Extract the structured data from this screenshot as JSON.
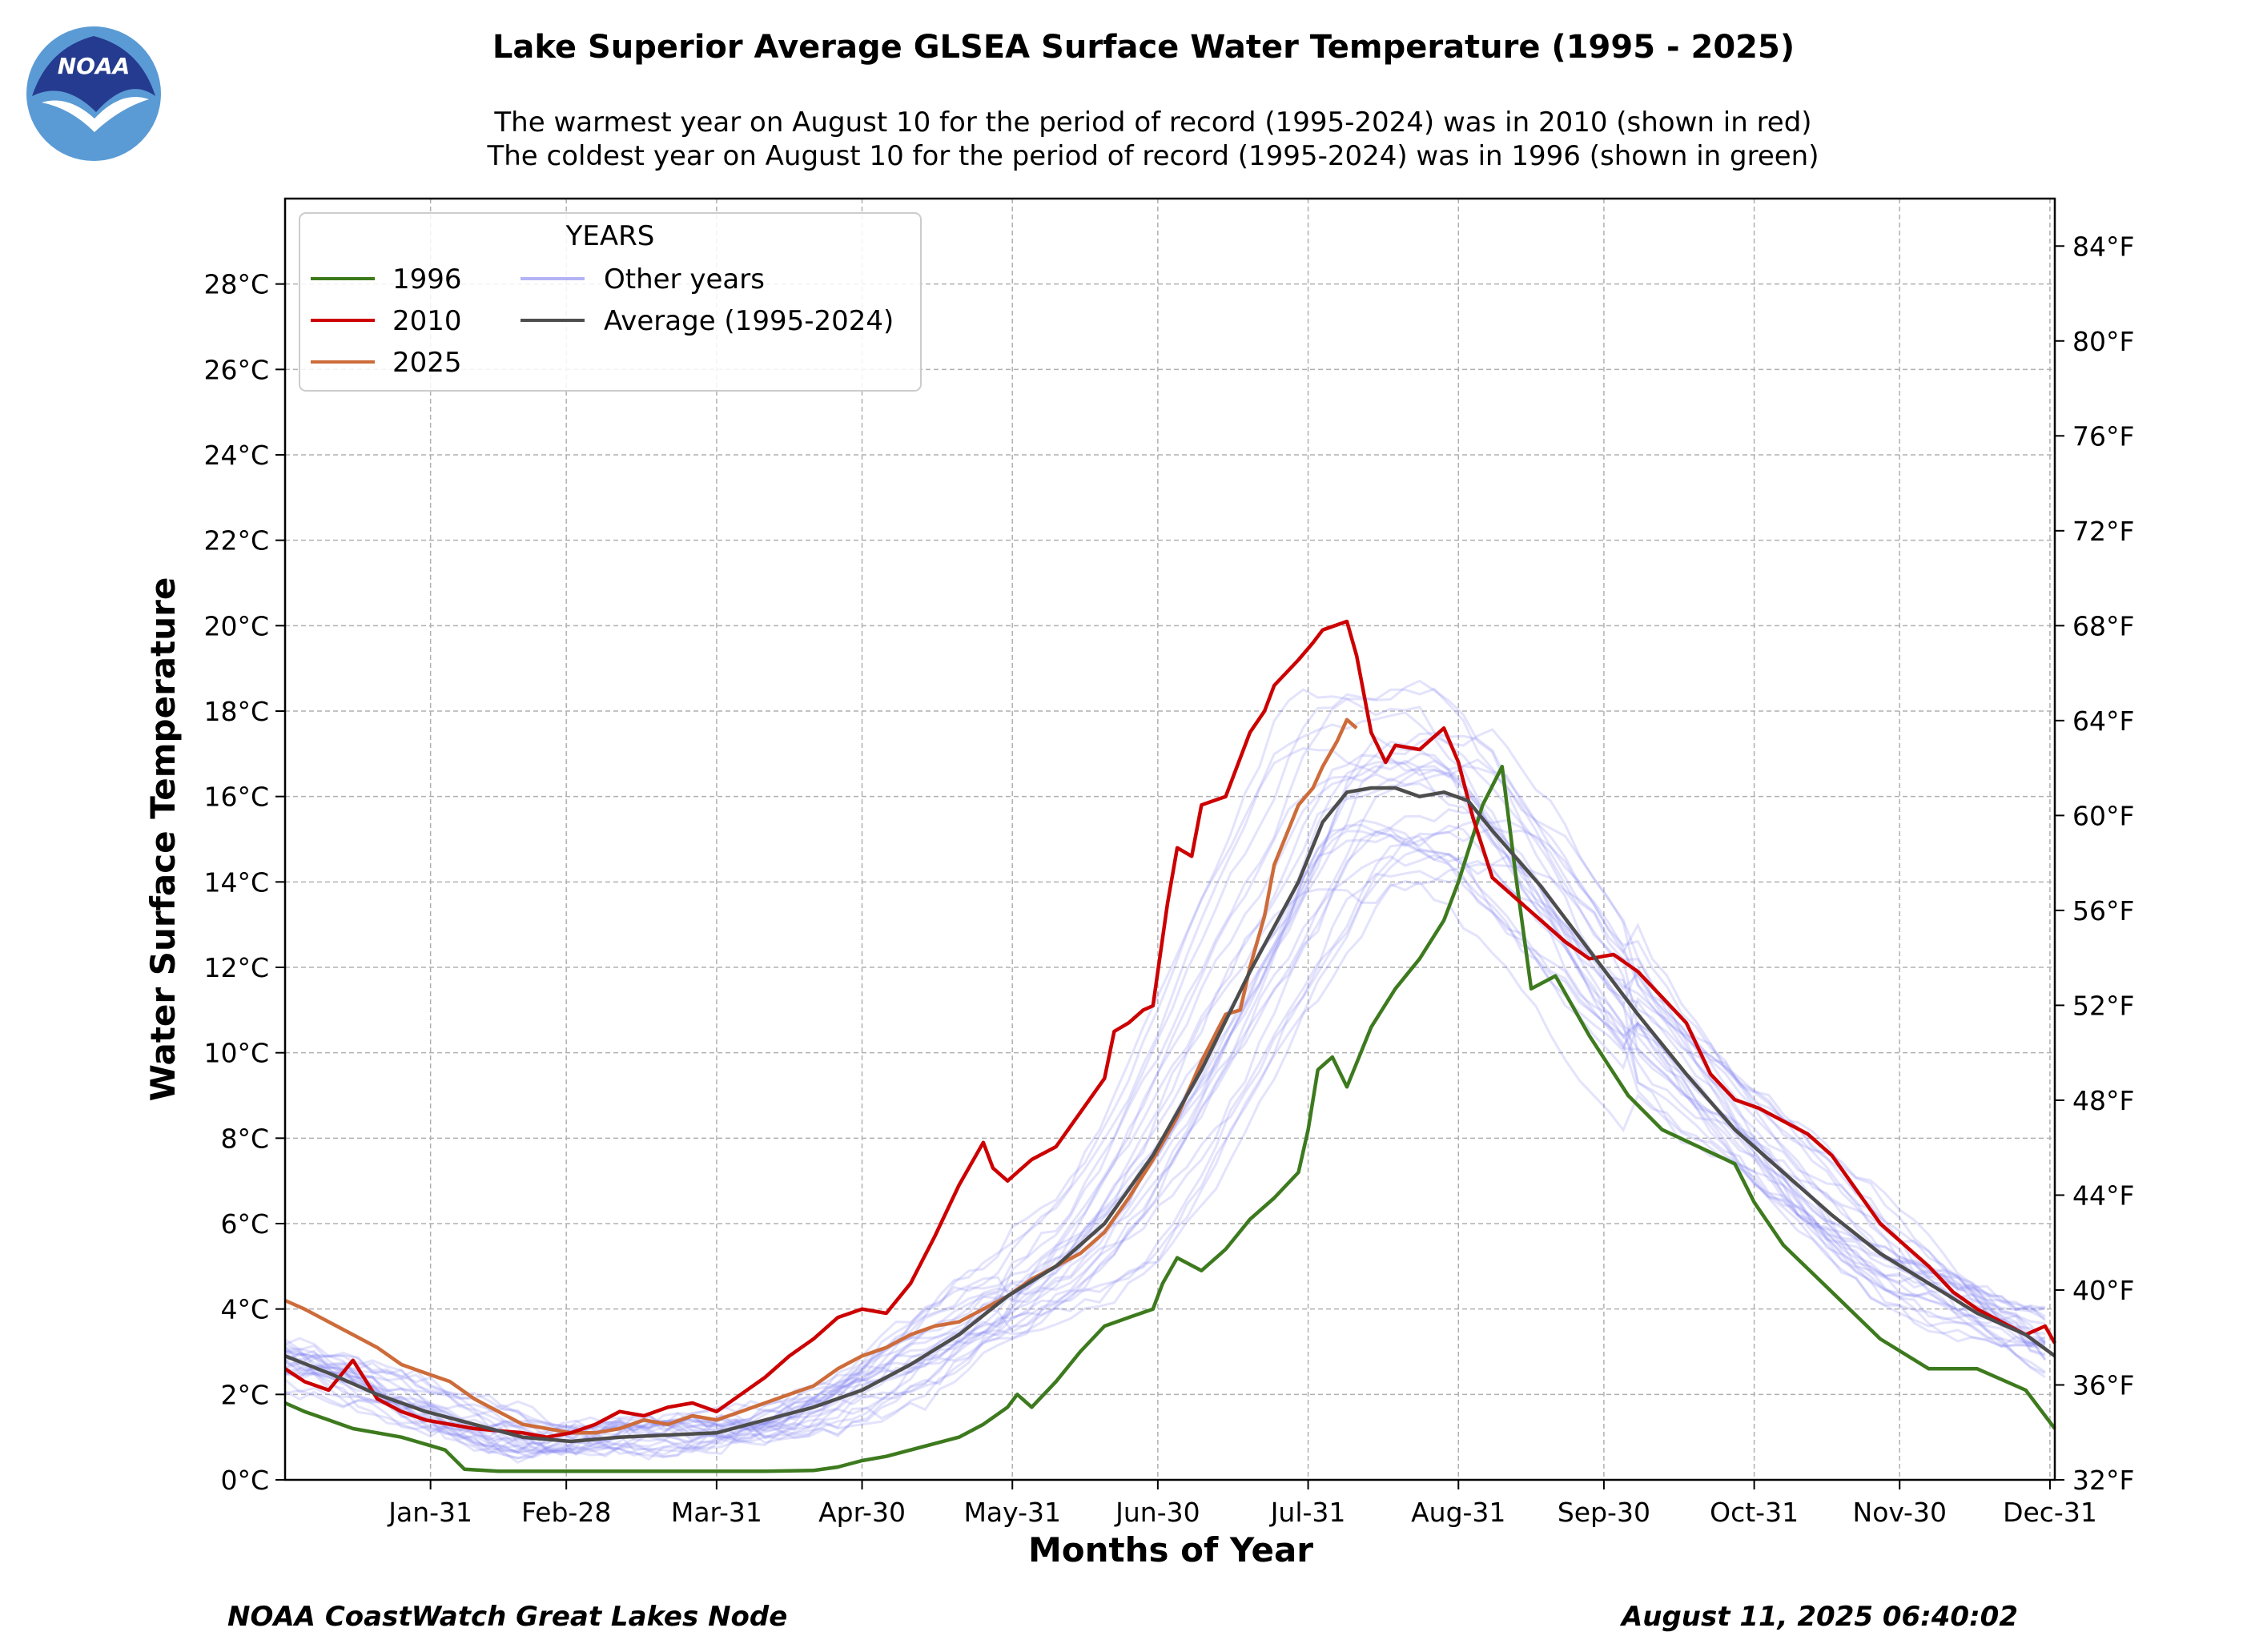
{
  "header": {
    "title": "Lake Superior Average GLSEA Surface Water Temperature (1995 - 2025)",
    "subtitle_1": "The warmest year on August 10 for the period of record (1995-2024) was in 2010 (shown in red)",
    "subtitle_2": "The coldest year on August 10 for the period of record (1995-2024) was in 1996 (shown in green)"
  },
  "logo": {
    "text": "NOAA",
    "icon": "noaa-logo"
  },
  "footer": {
    "source": "NOAA CoastWatch Great Lakes Node",
    "timestamp": "August 11, 2025 06:40:02"
  },
  "colors": {
    "y1996": "#3d7a1e",
    "y2010": "#cc0000",
    "y2025": "#cd6c3a",
    "other": "#8080f0",
    "average": "#4d4d4d"
  },
  "chart_data": {
    "type": "line",
    "title": "Lake Superior Average GLSEA Surface Water Temperature (1995 - 2025)",
    "xlabel": "Months of Year",
    "ylabel": "Water Surface Temperature",
    "x_unit": "day of year",
    "xlim": [
      1,
      366
    ],
    "ylim": [
      0,
      30
    ],
    "y2lim_F": [
      32,
      86
    ],
    "x_ticks": [
      {
        "day": 31,
        "label": "Jan-31"
      },
      {
        "day": 59,
        "label": "Feb-28"
      },
      {
        "day": 90,
        "label": "Mar-31"
      },
      {
        "day": 120,
        "label": "Apr-30"
      },
      {
        "day": 151,
        "label": "May-31"
      },
      {
        "day": 181,
        "label": "Jun-30"
      },
      {
        "day": 212,
        "label": "Jul-31"
      },
      {
        "day": 243,
        "label": "Aug-31"
      },
      {
        "day": 273,
        "label": "Sep-30"
      },
      {
        "day": 304,
        "label": "Oct-31"
      },
      {
        "day": 334,
        "label": "Nov-30"
      },
      {
        "day": 365,
        "label": "Dec-31"
      }
    ],
    "y_ticks": [
      {
        "v": 0,
        "label": "0°C"
      },
      {
        "v": 2,
        "label": "2°C"
      },
      {
        "v": 4,
        "label": "4°C"
      },
      {
        "v": 6,
        "label": "6°C"
      },
      {
        "v": 8,
        "label": "8°C"
      },
      {
        "v": 10,
        "label": "10°C"
      },
      {
        "v": 12,
        "label": "12°C"
      },
      {
        "v": 14,
        "label": "14°C"
      },
      {
        "v": 16,
        "label": "16°C"
      },
      {
        "v": 18,
        "label": "18°C"
      },
      {
        "v": 20,
        "label": "20°C"
      },
      {
        "v": 22,
        "label": "22°C"
      },
      {
        "v": 24,
        "label": "24°C"
      },
      {
        "v": 26,
        "label": "26°C"
      },
      {
        "v": 28,
        "label": "28°C"
      }
    ],
    "y2_ticks": [
      {
        "v": 32,
        "label": "32°F"
      },
      {
        "v": 36,
        "label": "36°F"
      },
      {
        "v": 40,
        "label": "40°F"
      },
      {
        "v": 44,
        "label": "44°F"
      },
      {
        "v": 48,
        "label": "48°F"
      },
      {
        "v": 52,
        "label": "52°F"
      },
      {
        "v": 56,
        "label": "56°F"
      },
      {
        "v": 60,
        "label": "60°F"
      },
      {
        "v": 64,
        "label": "64°F"
      },
      {
        "v": 68,
        "label": "68°F"
      },
      {
        "v": 72,
        "label": "72°F"
      },
      {
        "v": 76,
        "label": "76°F"
      },
      {
        "v": 80,
        "label": "80°F"
      },
      {
        "v": 84,
        "label": "84°F"
      }
    ],
    "grid": true,
    "legend": {
      "placement": "top-left",
      "title": "YEARS",
      "entries": [
        "1996",
        "2010",
        "2025",
        "Other years",
        "Average (1995-2024)"
      ]
    },
    "series": [
      {
        "name": "1996",
        "color_key": "y1996",
        "x": [
          1,
          5,
          10,
          15,
          20,
          25,
          28,
          31,
          34,
          38,
          45,
          55,
          60,
          70,
          80,
          90,
          100,
          110,
          115,
          120,
          125,
          130,
          135,
          140,
          145,
          150,
          152,
          155,
          160,
          165,
          170,
          175,
          180,
          182,
          185,
          190,
          195,
          200,
          205,
          210,
          212,
          214,
          217,
          220,
          225,
          230,
          235,
          240,
          243,
          248,
          252,
          255,
          258,
          263,
          270,
          278,
          285,
          300,
          304,
          310,
          320,
          330,
          340,
          350,
          360,
          366
        ],
        "values": [
          1.8,
          1.6,
          1.4,
          1.2,
          1.1,
          1.0,
          0.9,
          0.8,
          0.7,
          0.25,
          0.2,
          0.2,
          0.2,
          0.2,
          0.2,
          0.2,
          0.2,
          0.22,
          0.3,
          0.45,
          0.55,
          0.7,
          0.85,
          1.0,
          1.3,
          1.7,
          2.0,
          1.7,
          2.3,
          3.0,
          3.6,
          3.8,
          4.0,
          4.6,
          5.2,
          4.9,
          5.4,
          6.1,
          6.6,
          7.2,
          8.2,
          9.6,
          9.9,
          9.2,
          10.6,
          11.5,
          12.2,
          13.1,
          14.0,
          15.8,
          16.7,
          14.0,
          11.5,
          11.8,
          10.4,
          9.0,
          8.2,
          7.4,
          6.5,
          5.5,
          4.4,
          3.3,
          2.6,
          2.6,
          2.1,
          1.2
        ]
      },
      {
        "name": "2010",
        "color_key": "y2010",
        "x": [
          1,
          5,
          10,
          15,
          20,
          25,
          30,
          35,
          40,
          50,
          55,
          60,
          65,
          70,
          75,
          80,
          85,
          90,
          95,
          100,
          105,
          110,
          115,
          120,
          125,
          130,
          135,
          140,
          145,
          147,
          150,
          152,
          155,
          160,
          165,
          170,
          172,
          175,
          178,
          180,
          183,
          185,
          188,
          190,
          195,
          200,
          203,
          205,
          210,
          213,
          215,
          220,
          222,
          225,
          228,
          230,
          235,
          240,
          243,
          246,
          250,
          255,
          260,
          265,
          270,
          275,
          280,
          285,
          290,
          295,
          300,
          305,
          310,
          315,
          320,
          325,
          330,
          335,
          340,
          345,
          350,
          355,
          360,
          364,
          366
        ],
        "values": [
          2.6,
          2.3,
          2.1,
          2.8,
          1.9,
          1.6,
          1.4,
          1.3,
          1.2,
          1.1,
          1.0,
          1.1,
          1.3,
          1.6,
          1.5,
          1.7,
          1.8,
          1.6,
          2.0,
          2.4,
          2.9,
          3.3,
          3.8,
          4.0,
          3.9,
          4.6,
          5.7,
          6.9,
          7.9,
          7.3,
          7.0,
          7.2,
          7.5,
          7.8,
          8.6,
          9.4,
          10.5,
          10.7,
          11.0,
          11.1,
          13.5,
          14.8,
          14.6,
          15.8,
          16.0,
          17.5,
          18.0,
          18.6,
          19.2,
          19.6,
          19.9,
          20.1,
          19.3,
          17.5,
          16.8,
          17.2,
          17.1,
          17.6,
          16.8,
          15.5,
          14.1,
          13.6,
          13.1,
          12.6,
          12.2,
          12.3,
          11.9,
          11.3,
          10.7,
          9.5,
          8.9,
          8.7,
          8.4,
          8.1,
          7.6,
          6.8,
          6.0,
          5.5,
          5.0,
          4.4,
          4.0,
          3.7,
          3.4,
          3.6,
          3.2
        ]
      },
      {
        "name": "2025",
        "color_key": "y2025",
        "x": [
          1,
          5,
          10,
          15,
          20,
          25,
          30,
          35,
          40,
          45,
          50,
          55,
          60,
          65,
          70,
          75,
          80,
          85,
          90,
          95,
          100,
          105,
          110,
          115,
          120,
          125,
          130,
          135,
          140,
          145,
          150,
          155,
          160,
          165,
          170,
          175,
          180,
          185,
          190,
          195,
          198,
          200,
          203,
          205,
          210,
          213,
          215,
          218,
          220,
          222
        ],
        "values": [
          4.2,
          4.0,
          3.7,
          3.4,
          3.1,
          2.7,
          2.5,
          2.3,
          1.9,
          1.6,
          1.3,
          1.2,
          1.1,
          1.1,
          1.2,
          1.4,
          1.3,
          1.5,
          1.4,
          1.6,
          1.8,
          2.0,
          2.2,
          2.6,
          2.9,
          3.1,
          3.4,
          3.6,
          3.7,
          4.0,
          4.3,
          4.7,
          5.0,
          5.3,
          5.8,
          6.6,
          7.5,
          8.5,
          9.8,
          10.9,
          11.0,
          12.0,
          13.2,
          14.4,
          15.8,
          16.2,
          16.7,
          17.3,
          17.8,
          17.6
        ]
      },
      {
        "name": "Average (1995-2024)",
        "color_key": "average",
        "x": [
          1,
          10,
          20,
          30,
          40,
          50,
          60,
          70,
          80,
          90,
          100,
          110,
          120,
          130,
          140,
          150,
          160,
          170,
          180,
          190,
          200,
          210,
          215,
          220,
          225,
          230,
          235,
          240,
          245,
          250,
          260,
          270,
          280,
          290,
          300,
          310,
          320,
          330,
          340,
          350,
          360,
          366
        ],
        "values": [
          2.9,
          2.5,
          2.0,
          1.6,
          1.3,
          1.0,
          0.9,
          1.0,
          1.05,
          1.1,
          1.4,
          1.7,
          2.1,
          2.7,
          3.4,
          4.3,
          5.0,
          6.0,
          7.6,
          9.6,
          11.9,
          14.0,
          15.4,
          16.1,
          16.2,
          16.2,
          16.0,
          16.1,
          15.9,
          15.2,
          13.9,
          12.4,
          10.9,
          9.5,
          8.2,
          7.2,
          6.2,
          5.3,
          4.6,
          3.9,
          3.4,
          2.9
        ]
      }
    ]
  }
}
